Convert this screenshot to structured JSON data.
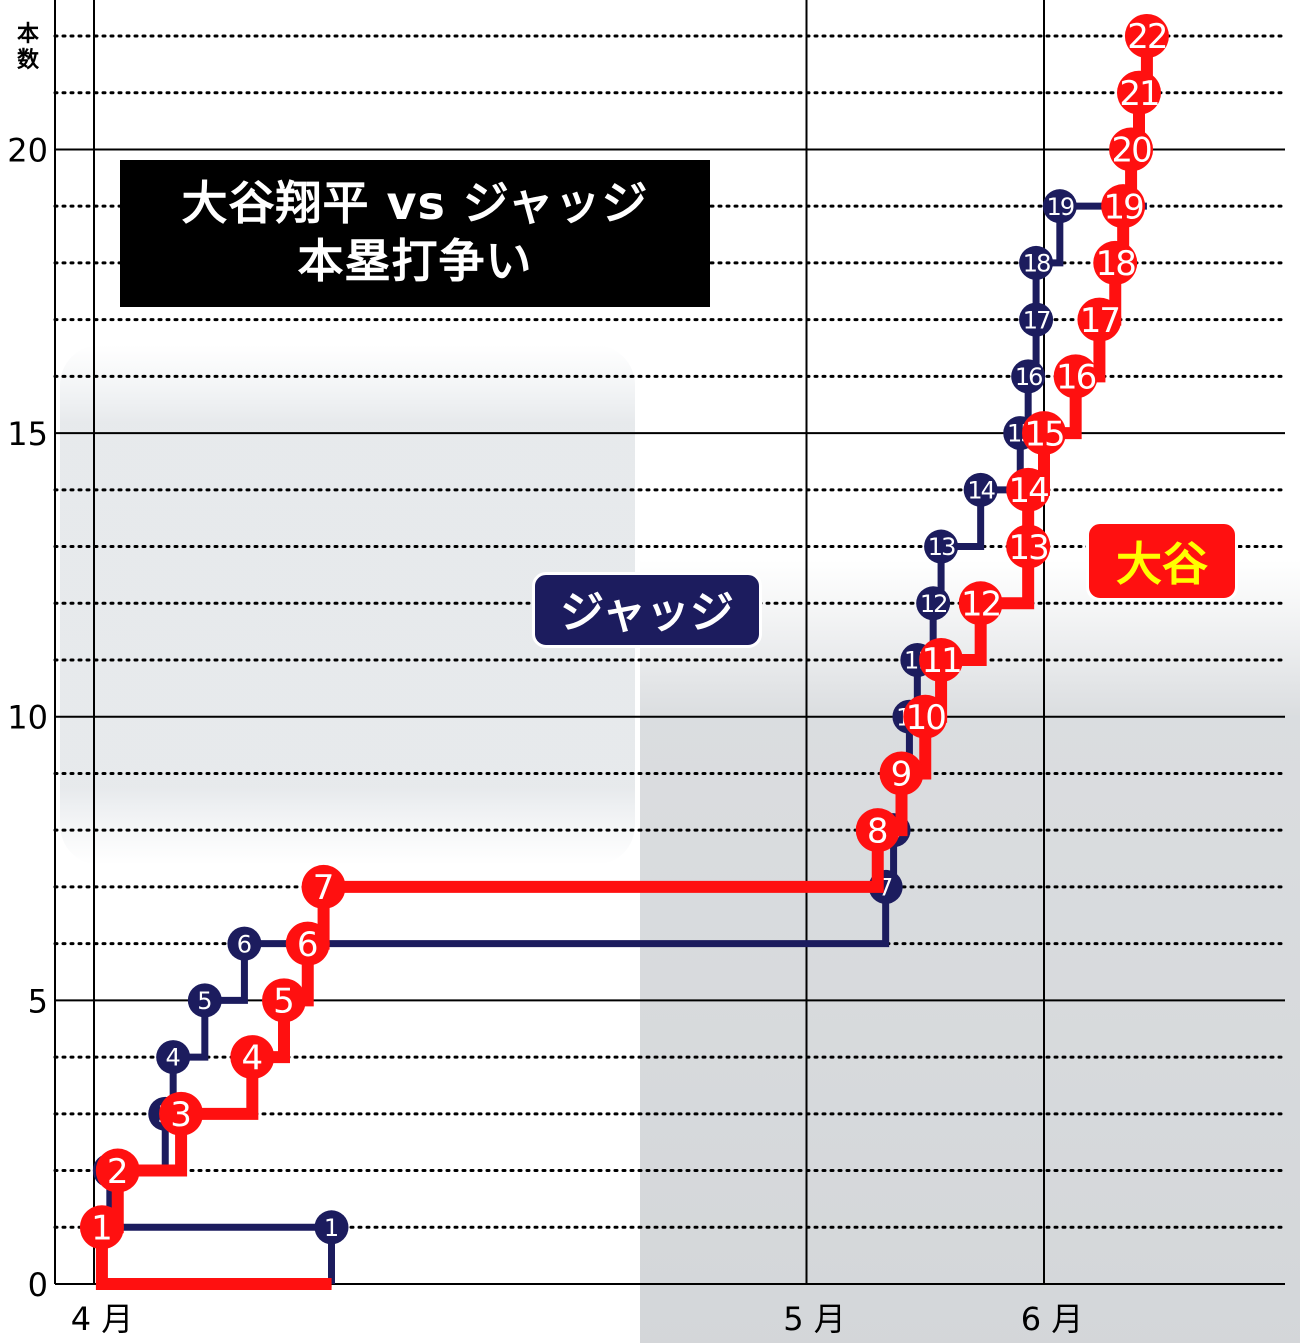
{
  "title": {
    "line1": "大谷翔平 vs ジャッジ",
    "line2": "本塁打争い"
  },
  "callouts": {
    "judge": "ジャッジ",
    "ohtani": "大谷"
  },
  "colors": {
    "judge": "#1c1c5e",
    "ohtani": "#ff1010",
    "grid": "#000000"
  },
  "chart_data": {
    "type": "line",
    "step": true,
    "ylabel": "本数",
    "xlabel": "",
    "ylim": [
      0,
      22
    ],
    "yticks": [
      0,
      5,
      10,
      15,
      20
    ],
    "x_range": [
      "3/30",
      "6/15"
    ],
    "x_ticks": [
      {
        "date": "4/1",
        "label": "4 月"
      },
      {
        "date": "5/1",
        "label": "5 月"
      },
      {
        "date": "6/1",
        "label": "6 月"
      }
    ],
    "grid": {
      "major_y": true,
      "minor_y_dotted": true,
      "vertical_month_lines": true
    },
    "series": [
      {
        "name": "ジャッジ",
        "color": "#1c1c5e",
        "points": [
          {
            "date": "3/31",
            "y": 1,
            "label": "1"
          },
          {
            "date": "4/3",
            "y": 2,
            "label": "2"
          },
          {
            "date": "4/10",
            "y": 3,
            "label": "3"
          },
          {
            "date": "4/11",
            "y": 4,
            "label": "4"
          },
          {
            "date": "4/15",
            "y": 5,
            "label": "5"
          },
          {
            "date": "4/20",
            "y": 6,
            "label": "6"
          },
          {
            "date": "5/11",
            "y": 7,
            "label": "7"
          },
          {
            "date": "5/12",
            "y": 8,
            "label": "8"
          },
          {
            "date": "5/13",
            "y": 9,
            "label": "9"
          },
          {
            "date": "5/14",
            "y": 10,
            "label": "10"
          },
          {
            "date": "5/15",
            "y": 11,
            "label": "11"
          },
          {
            "date": "5/17",
            "y": 12,
            "label": "12"
          },
          {
            "date": "5/18",
            "y": 13,
            "label": "13"
          },
          {
            "date": "5/23",
            "y": 14,
            "label": "14"
          },
          {
            "date": "5/28",
            "y": 15,
            "label": "15"
          },
          {
            "date": "5/29",
            "y": 16,
            "label": "16"
          },
          {
            "date": "5/30",
            "y": 17,
            "label": "17"
          },
          {
            "date": "5/30",
            "y": 18,
            "label": "18"
          },
          {
            "date": "6/3",
            "y": 19,
            "label": "19"
          }
        ],
        "end_date": "6/14"
      },
      {
        "name": "大谷",
        "color": "#ff1010",
        "points": [
          {
            "date": "4/2",
            "y": 1,
            "label": "1"
          },
          {
            "date": "4/4",
            "y": 2,
            "label": "2"
          },
          {
            "date": "4/12",
            "y": 3,
            "label": "3"
          },
          {
            "date": "4/21",
            "y": 4,
            "label": "4"
          },
          {
            "date": "4/25",
            "y": 5,
            "label": "5"
          },
          {
            "date": "4/28",
            "y": 6,
            "label": "6"
          },
          {
            "date": "4/30",
            "y": 7,
            "label": "7"
          },
          {
            "date": "5/10",
            "y": 8,
            "label": "8"
          },
          {
            "date": "5/13",
            "y": 9,
            "label": "9"
          },
          {
            "date": "5/16",
            "y": 10,
            "label": "10"
          },
          {
            "date": "5/18",
            "y": 11,
            "label": "11"
          },
          {
            "date": "5/23",
            "y": 12,
            "label": "12"
          },
          {
            "date": "5/29",
            "y": 13,
            "label": "13"
          },
          {
            "date": "5/29",
            "y": 14,
            "label": "14"
          },
          {
            "date": "5/31",
            "y": 15,
            "label": "15"
          },
          {
            "date": "6/5",
            "y": 16,
            "label": "16"
          },
          {
            "date": "6/8",
            "y": 17,
            "label": "17"
          },
          {
            "date": "6/10",
            "y": 18,
            "label": "18"
          },
          {
            "date": "6/11",
            "y": 19,
            "label": "19"
          },
          {
            "date": "6/12",
            "y": 20,
            "label": "20"
          },
          {
            "date": "6/13",
            "y": 21,
            "label": "21"
          },
          {
            "date": "6/14",
            "y": 22,
            "label": "22"
          }
        ]
      }
    ]
  }
}
